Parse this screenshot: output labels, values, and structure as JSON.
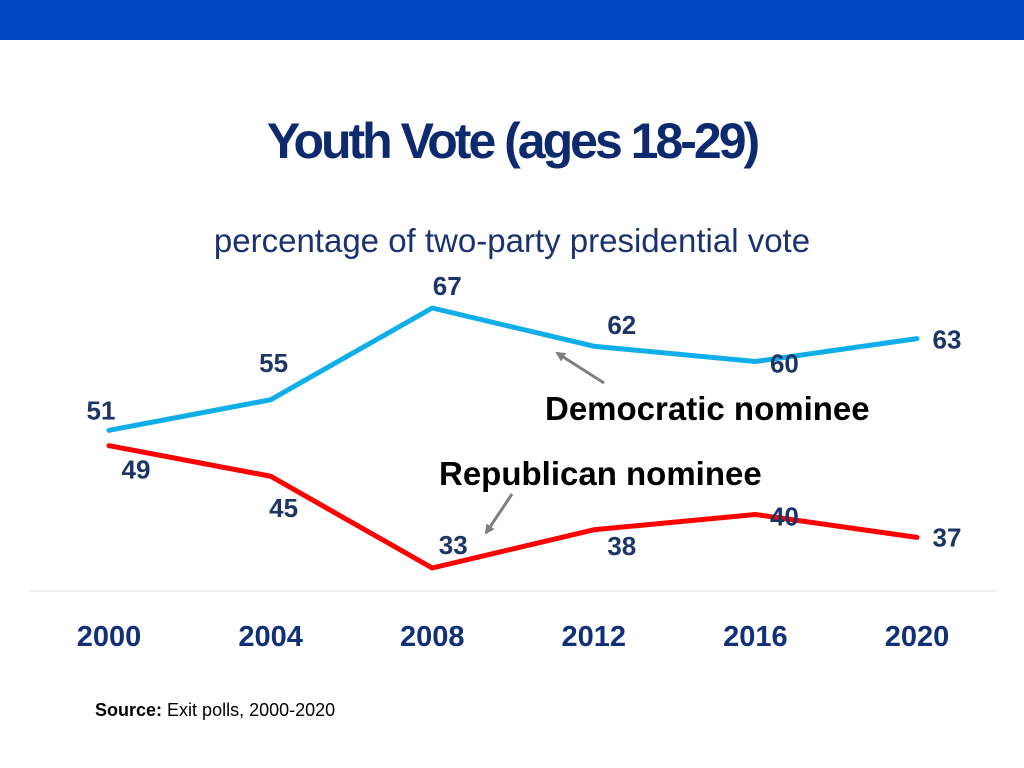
{
  "header": {
    "bar_color": "#0047c6"
  },
  "title": "Youth Vote (ages 18-29)",
  "subtitle": "percentage of two-party presidential vote",
  "source": {
    "label": "Source:",
    "text": "Exit polls, 2000-2020"
  },
  "chart_data": {
    "type": "line",
    "title": "Youth Vote (ages 18-29)",
    "subtitle": "percentage of two-party presidential vote",
    "categories": [
      "2000",
      "2004",
      "2008",
      "2012",
      "2016",
      "2020"
    ],
    "series": [
      {
        "name": "Democratic nominee",
        "color": "#10aee8",
        "values": [
          51,
          55,
          67,
          62,
          60,
          63
        ]
      },
      {
        "name": "Republican nominee",
        "color": "#ff0000",
        "values": [
          49,
          45,
          33,
          38,
          40,
          37
        ]
      }
    ],
    "annotations": [
      "Democratic nominee",
      "Republican nominee"
    ],
    "xlabel": "",
    "ylabel": "",
    "ylim": [
      28,
      72
    ],
    "grid": false
  }
}
